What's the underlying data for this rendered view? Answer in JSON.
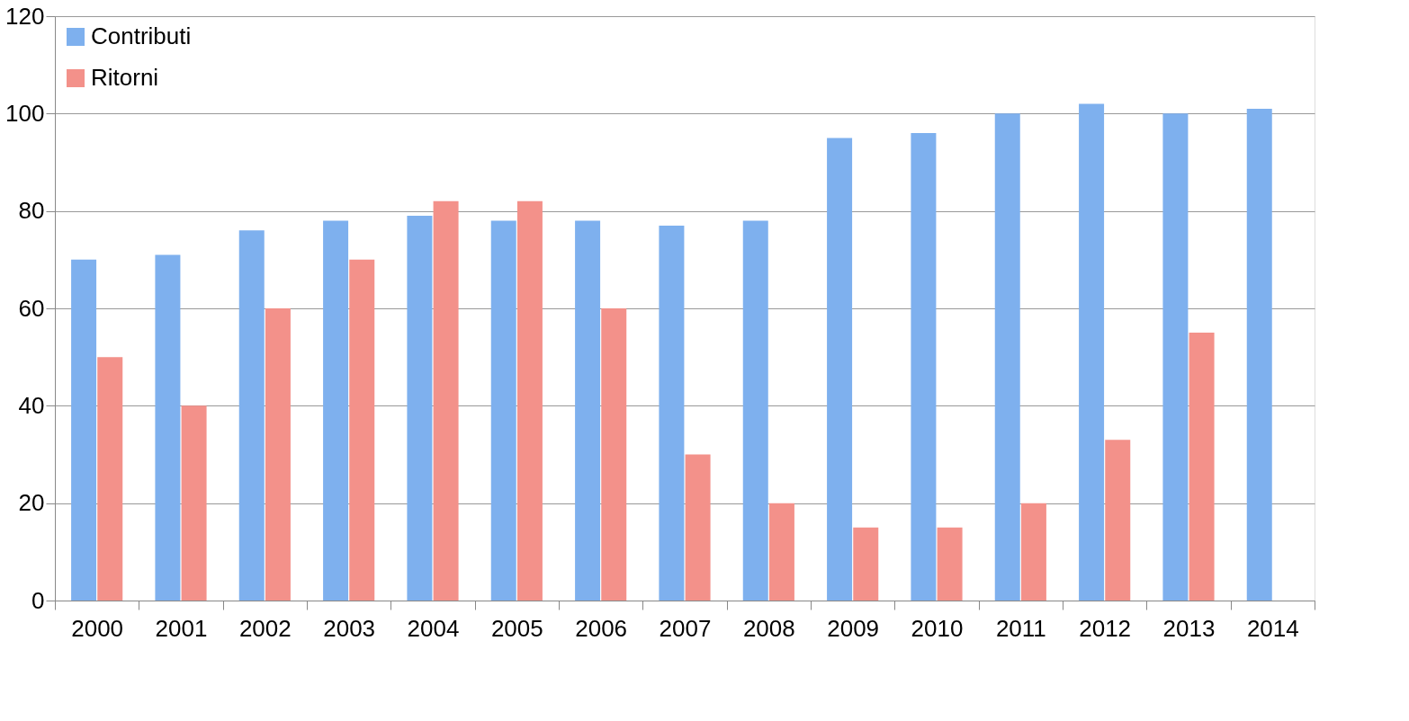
{
  "chart_data": {
    "type": "bar",
    "categories": [
      "2000",
      "2001",
      "2002",
      "2003",
      "2004",
      "2005",
      "2006",
      "2007",
      "2008",
      "2009",
      "2010",
      "2011",
      "2012",
      "2013",
      "2014"
    ],
    "series": [
      {
        "name": "Contributi",
        "color": "#7eb0ee",
        "values": [
          70,
          71,
          76,
          78,
          79,
          78,
          78,
          77,
          78,
          95,
          96,
          100,
          102,
          100,
          101
        ]
      },
      {
        "name": "Ritorni",
        "color": "#f3918a",
        "values": [
          50,
          40,
          60,
          70,
          82,
          82,
          60,
          30,
          20,
          15,
          15,
          20,
          33,
          55,
          null
        ]
      }
    ],
    "ylim": [
      0,
      120
    ],
    "yticks": [
      0,
      20,
      40,
      60,
      80,
      100,
      120
    ],
    "grid": "y",
    "legend": "top left"
  }
}
